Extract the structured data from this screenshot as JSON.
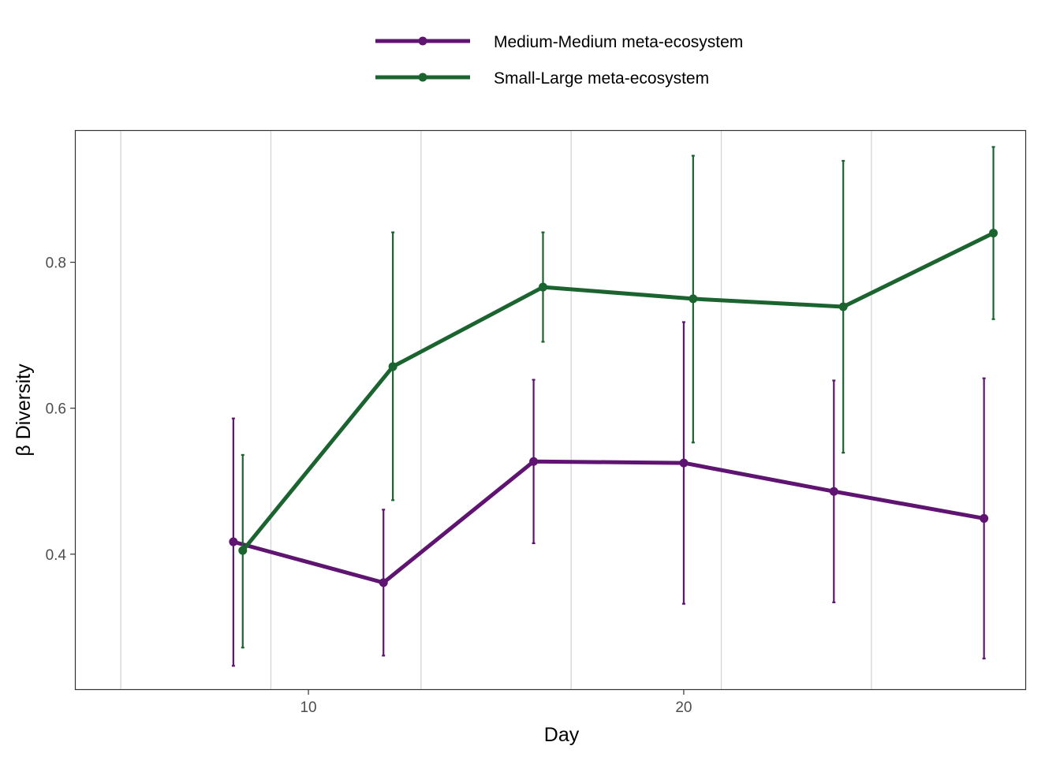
{
  "chart_data": {
    "type": "line",
    "title": "",
    "xlabel": "Day",
    "ylabel": "β Diversity",
    "xlim": [
      3.8,
      29.1
    ],
    "ylim": [
      0.215,
      0.98
    ],
    "x_ticks": [
      10,
      20
    ],
    "x_tick_labels": [
      "10",
      "20"
    ],
    "x_minor_gridlines": [
      5,
      9,
      13,
      17,
      21,
      25
    ],
    "y_ticks": [
      0.4,
      0.6,
      0.8
    ],
    "y_tick_labels": [
      "0.4",
      "0.6",
      "0.8"
    ],
    "grid": "vertical",
    "legend": "top",
    "series": [
      {
        "name": "Medium-Medium meta-ecosystem",
        "color": "#5e1470",
        "x": [
          8,
          12,
          16,
          20,
          24,
          28
        ],
        "y": [
          0.417,
          0.361,
          0.527,
          0.525,
          0.486,
          0.449
        ],
        "y_low": [
          0.247,
          0.261,
          0.415,
          0.332,
          0.334,
          0.257
        ],
        "y_high": [
          0.586,
          0.461,
          0.639,
          0.718,
          0.638,
          0.641
        ]
      },
      {
        "name": "Small-Large meta-ecosystem",
        "color": "#1b6430",
        "x": [
          8.25,
          12.25,
          16.25,
          20.25,
          24.25,
          28.25
        ],
        "y": [
          0.405,
          0.657,
          0.766,
          0.75,
          0.739,
          0.84
        ],
        "y_low": [
          0.272,
          0.474,
          0.691,
          0.553,
          0.539,
          0.722
        ],
        "y_high": [
          0.536,
          0.841,
          0.841,
          0.946,
          0.939,
          0.958
        ]
      }
    ]
  }
}
